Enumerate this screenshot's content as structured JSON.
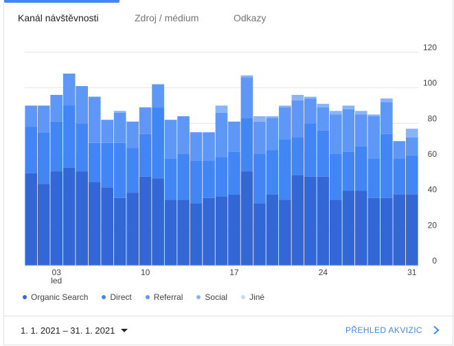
{
  "tabs": [
    {
      "label": "Kanál návštěvnosti"
    },
    {
      "label": "Zdroj / médium"
    },
    {
      "label": "Odkazy"
    }
  ],
  "legend": [
    {
      "label": "Organic Search",
      "color": "#3367d6"
    },
    {
      "label": "Direct",
      "color": "#4285f4"
    },
    {
      "label": "Referral",
      "color": "#5e97f6"
    },
    {
      "label": "Social",
      "color": "#8ab4f8"
    },
    {
      "label": "Jiné",
      "color": "#c6dafc"
    }
  ],
  "footer": {
    "date_range": "1. 1. 2021 – 31. 1. 2021",
    "report_link": "PŘEHLED AKVIZIC"
  },
  "chart_data": {
    "type": "bar",
    "stacked": true,
    "categories": [
      "1",
      "2",
      "3",
      "4",
      "5",
      "6",
      "7",
      "8",
      "9",
      "10",
      "11",
      "12",
      "13",
      "14",
      "15",
      "16",
      "17",
      "18",
      "19",
      "20",
      "21",
      "22",
      "23",
      "24",
      "25",
      "26",
      "27",
      "28",
      "29",
      "30",
      "31"
    ],
    "x_tick_labels": [
      {
        "day": 3,
        "lines": [
          "03",
          "led"
        ]
      },
      {
        "day": 10,
        "lines": [
          "10"
        ]
      },
      {
        "day": 17,
        "lines": [
          "17"
        ]
      },
      {
        "day": 24,
        "lines": [
          "24"
        ]
      },
      {
        "day": 31,
        "lines": [
          "31"
        ]
      }
    ],
    "y_ticks": [
      "0",
      "20",
      "40",
      "60",
      "80",
      "100",
      "120"
    ],
    "ylim": [
      0,
      120
    ],
    "grid": true,
    "legend_position": "bottom-left",
    "series": [
      {
        "name": "Organic Search",
        "color": "#3367d6",
        "values": [
          52,
          46,
          53,
          55,
          53,
          47,
          44,
          38,
          41,
          50,
          49,
          37,
          37,
          35,
          38,
          39,
          40,
          53,
          35,
          40,
          37,
          51,
          50,
          50,
          37,
          42,
          42,
          38,
          38,
          40,
          40
        ]
      },
      {
        "name": "Direct",
        "color": "#4285f4",
        "values": [
          26,
          29,
          28,
          35,
          27,
          22,
          25,
          31,
          25,
          24,
          40,
          23,
          26,
          24,
          21,
          22,
          24,
          30,
          28,
          25,
          34,
          21,
          30,
          26,
          26,
          22,
          25,
          22,
          36,
          20,
          22
        ]
      },
      {
        "name": "Referral",
        "color": "#5e97f6",
        "values": [
          12,
          15,
          15,
          18,
          21,
          26,
          13,
          17,
          15,
          15,
          13,
          22,
          21,
          16,
          16,
          25,
          17,
          23,
          18,
          18,
          18,
          21,
          14,
          13,
          22,
          24,
          18,
          24,
          18,
          10,
          10
        ]
      },
      {
        "name": "Social",
        "color": "#8ab4f8",
        "values": [
          0,
          0,
          0,
          0,
          0,
          0,
          0,
          1,
          0,
          0,
          0,
          0,
          0,
          0,
          0,
          4,
          0,
          1,
          3,
          1,
          1,
          3,
          1,
          2,
          2,
          2,
          2,
          1,
          2,
          0,
          5
        ]
      },
      {
        "name": "Jiné",
        "color": "#c6dafc",
        "values": [
          0,
          0,
          0,
          0,
          0,
          0,
          0,
          0,
          0,
          0,
          0,
          0,
          0,
          0,
          0,
          0,
          0,
          0,
          0,
          0,
          0,
          0,
          0,
          0,
          0,
          0,
          0,
          0,
          0,
          0,
          0
        ]
      }
    ]
  }
}
